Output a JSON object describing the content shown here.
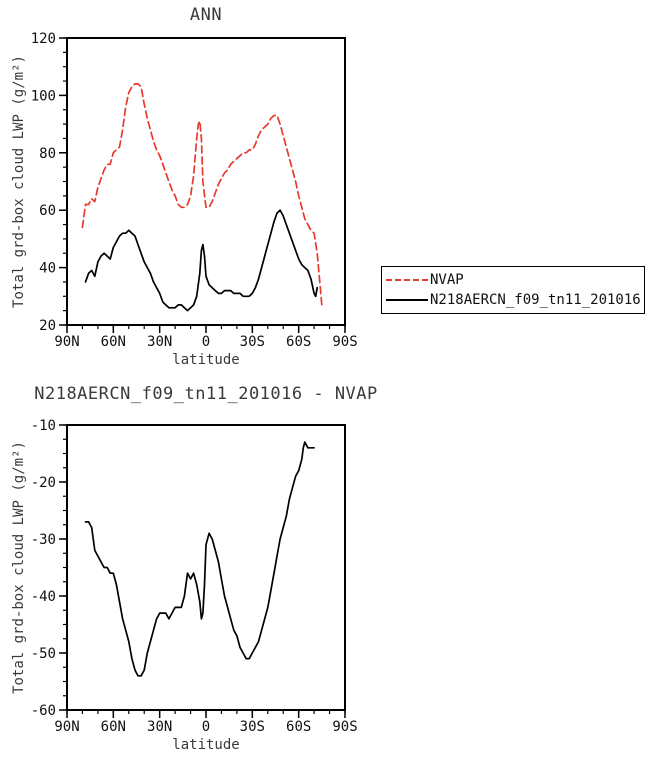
{
  "legend": {
    "entries": [
      {
        "label": "NVAP",
        "color": "#e8392f",
        "style": "dashed"
      },
      {
        "label": "N218AERCN_f09_tn11_201016",
        "color": "#000000",
        "style": "solid"
      }
    ]
  },
  "chart_data": [
    {
      "type": "line",
      "title": "ANN",
      "xlabel": "latitude",
      "ylabel": "Total grd-box cloud LWP (g/m²)",
      "xlim": [
        90,
        -90
      ],
      "ylim": [
        20,
        120
      ],
      "x_minor_step": 10,
      "y_minor_step": 5,
      "x_ticks": [
        {
          "v": 90,
          "label": "90N"
        },
        {
          "v": 60,
          "label": "60N"
        },
        {
          "v": 30,
          "label": "30N"
        },
        {
          "v": 0,
          "label": "0"
        },
        {
          "v": -30,
          "label": "30S"
        },
        {
          "v": -60,
          "label": "60S"
        },
        {
          "v": -90,
          "label": "90S"
        }
      ],
      "y_ticks": [
        20,
        40,
        60,
        80,
        100,
        120
      ],
      "legend_position": "right",
      "series": [
        {
          "name": "NVAP",
          "color": "#e8392f",
          "style": "dashed",
          "x": [
            80,
            78,
            76,
            74,
            72,
            70,
            68,
            66,
            64,
            62,
            60,
            58,
            56,
            54,
            52,
            50,
            48,
            46,
            44,
            42,
            40,
            38,
            36,
            34,
            32,
            30,
            28,
            26,
            24,
            22,
            20,
            18,
            16,
            14,
            12,
            10,
            8,
            6,
            5,
            4,
            3,
            2,
            0,
            -2,
            -4,
            -6,
            -8,
            -10,
            -12,
            -14,
            -16,
            -18,
            -20,
            -22,
            -24,
            -26,
            -28,
            -30,
            -32,
            -34,
            -36,
            -38,
            -40,
            -42,
            -44,
            -46,
            -48,
            -50,
            -52,
            -54,
            -56,
            -58,
            -60,
            -62,
            -64,
            -66,
            -68,
            -70,
            -72,
            -74,
            -75
          ],
          "y": [
            54,
            62,
            62,
            64,
            63,
            68,
            71,
            74,
            76,
            76,
            80,
            81,
            82,
            88,
            96,
            101,
            103,
            104,
            104,
            103,
            97,
            92,
            88,
            84,
            81,
            79,
            76,
            73,
            70,
            67,
            65,
            62,
            61,
            61,
            62,
            65,
            72,
            85,
            90,
            91,
            85,
            70,
            61,
            61,
            63,
            66,
            69,
            71,
            73,
            74,
            76,
            77,
            78,
            79,
            80,
            80,
            81,
            81,
            83,
            86,
            88,
            89,
            90,
            92,
            93,
            93,
            90,
            86,
            82,
            78,
            74,
            70,
            65,
            61,
            57,
            55,
            53,
            52,
            45,
            33,
            27
          ]
        },
        {
          "name": "N218AERCN_f09_tn11_201016",
          "color": "#000000",
          "style": "solid",
          "x": [
            78,
            76,
            74,
            72,
            70,
            68,
            66,
            64,
            62,
            60,
            58,
            56,
            54,
            52,
            50,
            48,
            46,
            44,
            42,
            40,
            38,
            36,
            34,
            32,
            30,
            28,
            26,
            24,
            22,
            20,
            18,
            16,
            14,
            12,
            10,
            8,
            6,
            4,
            3,
            2,
            1,
            0,
            -2,
            -4,
            -6,
            -8,
            -10,
            -12,
            -14,
            -16,
            -18,
            -20,
            -22,
            -24,
            -26,
            -28,
            -30,
            -32,
            -34,
            -36,
            -38,
            -40,
            -42,
            -44,
            -46,
            -48,
            -50,
            -52,
            -54,
            -56,
            -58,
            -60,
            -62,
            -64,
            -66,
            -68,
            -70,
            -71,
            -72
          ],
          "y": [
            35,
            38,
            39,
            37,
            42,
            44,
            45,
            44,
            43,
            47,
            49,
            51,
            52,
            52,
            53,
            52,
            51,
            48,
            45,
            42,
            40,
            38,
            35,
            33,
            31,
            28,
            27,
            26,
            26,
            26,
            27,
            27,
            26,
            25,
            26,
            27,
            30,
            38,
            46,
            48,
            44,
            37,
            34,
            33,
            32,
            31,
            31,
            32,
            32,
            32,
            31,
            31,
            31,
            30,
            30,
            30,
            31,
            33,
            36,
            40,
            44,
            48,
            52,
            56,
            59,
            60,
            58,
            55,
            52,
            49,
            46,
            43,
            41,
            40,
            39,
            36,
            31,
            30,
            33
          ]
        }
      ]
    },
    {
      "type": "line",
      "title": "N218AERCN_f09_tn11_201016 - NVAP",
      "xlabel": "latitude",
      "ylabel": "Total grd-box cloud LWP (g/m²)",
      "xlim": [
        90,
        -90
      ],
      "ylim": [
        -60,
        -10
      ],
      "x_minor_step": 10,
      "y_minor_step": 2.5,
      "x_ticks": [
        {
          "v": 90,
          "label": "90N"
        },
        {
          "v": 60,
          "label": "60N"
        },
        {
          "v": 30,
          "label": "30N"
        },
        {
          "v": 0,
          "label": "0"
        },
        {
          "v": -30,
          "label": "30S"
        },
        {
          "v": -60,
          "label": "60S"
        },
        {
          "v": -90,
          "label": "90S"
        }
      ],
      "y_ticks": [
        -60,
        -50,
        -40,
        -30,
        -20,
        -10
      ],
      "series": [
        {
          "name": "N218AERCN_f09_tn11_201016 - NVAP",
          "color": "#000000",
          "style": "solid",
          "x": [
            78,
            76,
            74,
            72,
            70,
            68,
            66,
            64,
            62,
            60,
            58,
            56,
            54,
            52,
            50,
            48,
            46,
            44,
            42,
            40,
            38,
            36,
            34,
            32,
            30,
            28,
            26,
            24,
            22,
            20,
            18,
            16,
            14,
            12,
            10,
            8,
            6,
            4,
            3,
            2,
            1,
            0,
            -2,
            -4,
            -6,
            -8,
            -10,
            -12,
            -14,
            -16,
            -18,
            -20,
            -22,
            -24,
            -26,
            -28,
            -30,
            -32,
            -34,
            -36,
            -38,
            -40,
            -42,
            -44,
            -46,
            -48,
            -50,
            -52,
            -54,
            -56,
            -58,
            -60,
            -62,
            -63,
            -64,
            -66,
            -68,
            -70
          ],
          "y": [
            -27,
            -27,
            -28,
            -32,
            -33,
            -34,
            -35,
            -35,
            -36,
            -36,
            -38,
            -41,
            -44,
            -46,
            -48,
            -51,
            -53,
            -54,
            -54,
            -53,
            -50,
            -48,
            -46,
            -44,
            -43,
            -43,
            -43,
            -44,
            -43,
            -42,
            -42,
            -42,
            -40,
            -36,
            -37,
            -36,
            -38,
            -41,
            -44,
            -43,
            -38,
            -31,
            -29,
            -30,
            -32,
            -34,
            -37,
            -40,
            -42,
            -44,
            -46,
            -47,
            -49,
            -50,
            -51,
            -51,
            -50,
            -49,
            -48,
            -46,
            -44,
            -42,
            -39,
            -36,
            -33,
            -30,
            -28,
            -26,
            -23,
            -21,
            -19,
            -18,
            -16,
            -14,
            -13,
            -14,
            -14,
            -14
          ]
        }
      ]
    }
  ]
}
